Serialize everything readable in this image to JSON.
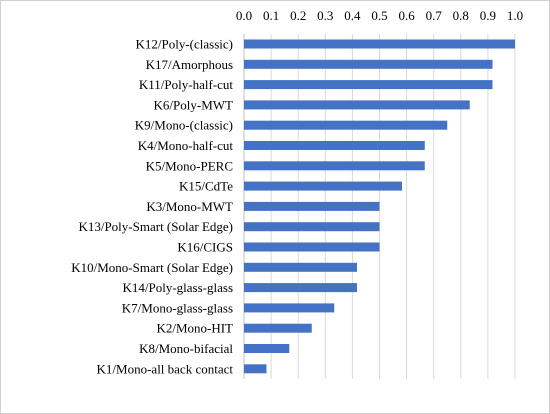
{
  "chart_data": {
    "type": "bar",
    "orientation": "horizontal",
    "title": "",
    "xlabel": "",
    "ylabel": "",
    "xlim": [
      0,
      1.0
    ],
    "x_ticks": [
      "0.0",
      "0.1",
      "0.2",
      "0.3",
      "0.4",
      "0.5",
      "0.6",
      "0.7",
      "0.8",
      "0.9",
      "1.0"
    ],
    "x_axis_position": "top",
    "grid": true,
    "legend": "none",
    "bar_color": "#4472c4",
    "categories": [
      "K12/Poly-(classic)",
      "K17/Amorphous",
      "K11/Poly-half-cut",
      "K6/Poly-MWT",
      "K9/Mono-(classic)",
      "K4/Mono-half-cut",
      "K5/Mono-PERC",
      "K15/CdTe",
      "K3/Mono-MWT",
      "K13/Poly-Smart (Solar Edge)",
      "K16/CIGS",
      "K10/Mono-Smart (Solar Edge)",
      "K14/Poly-glass-glass",
      "K7/Mono-glass-glass",
      "K2/Mono-HIT",
      "K8/Mono-bifacial",
      "K1/Mono-all back contact"
    ],
    "values": [
      1.0,
      0.917,
      0.917,
      0.833,
      0.75,
      0.667,
      0.667,
      0.583,
      0.5,
      0.5,
      0.5,
      0.417,
      0.417,
      0.333,
      0.25,
      0.167,
      0.083
    ]
  }
}
